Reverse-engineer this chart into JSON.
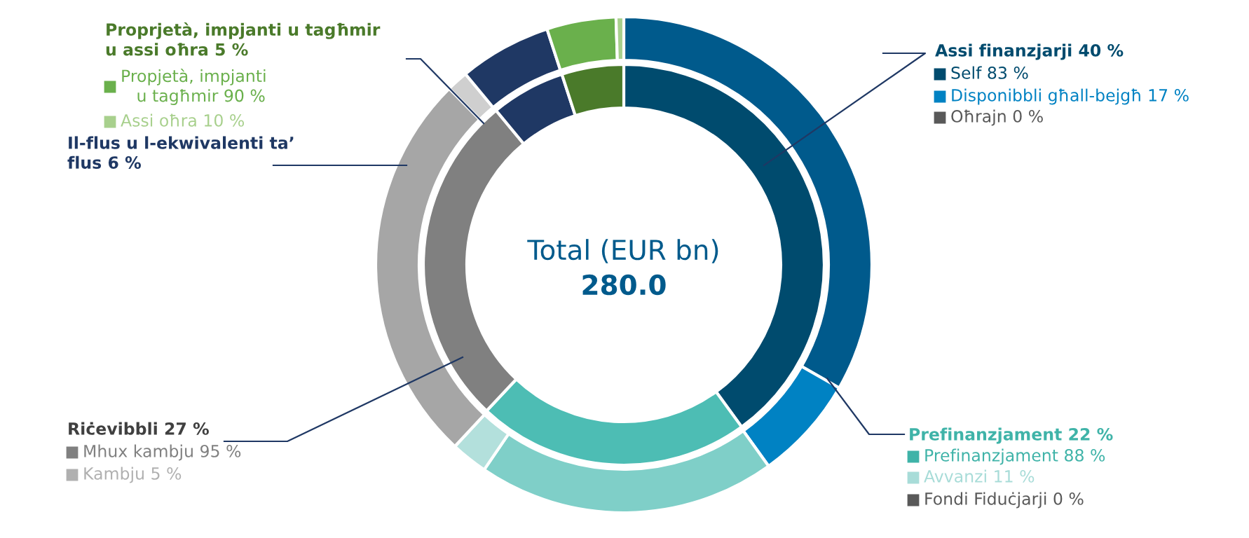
{
  "chart_data": {
    "type": "donut",
    "series": [
      {
        "values": [
          40,
          22,
          27,
          6,
          5
        ],
        "colors": [
          "#004b6e",
          "#4dbdb4",
          "#808080",
          "#1f3864",
          "#4a7a2a"
        ]
      },
      {
        "values": [
          33.2,
          6.8,
          0,
          19.4,
          2.4,
          0,
          25.6,
          1.4,
          6,
          4.5,
          0.5
        ],
        "colors": [
          "#005a8c",
          "#0082c3",
          "#808080",
          "#7fcfc8",
          "#b3e0dc",
          "#595959",
          "#a6a6a6",
          "#cfcfcf",
          "#1f3864",
          "#6ab04c",
          "#a8d08d"
        ]
      }
    ],
    "annotations": [
      "Total (EUR bn)",
      "280.0",
      "Assi finanzjarji 40 %",
      "Self 83 %",
      "Disponibbli għall-bejgħ 17 %",
      "Oħrajn 0 %",
      "Prefinanzjament 22 %",
      "Prefinanzjament 88 %",
      "Avvanzi 11 %",
      "Fondi Fiduċjarji 0 %",
      "Riċevibbli 27 %",
      "Mhux kambju 95 %",
      "Kambju 5 %",
      "Il-flus u l-ekwivalenti ta’\nflus 6 %",
      "Proprjetà, impjanti u tagħmir\nu assi oħra 5 %",
      "Propjetà, impjanti\n   u tagħmir 90 %",
      "Assi oħra 10 %"
    ]
  }
}
